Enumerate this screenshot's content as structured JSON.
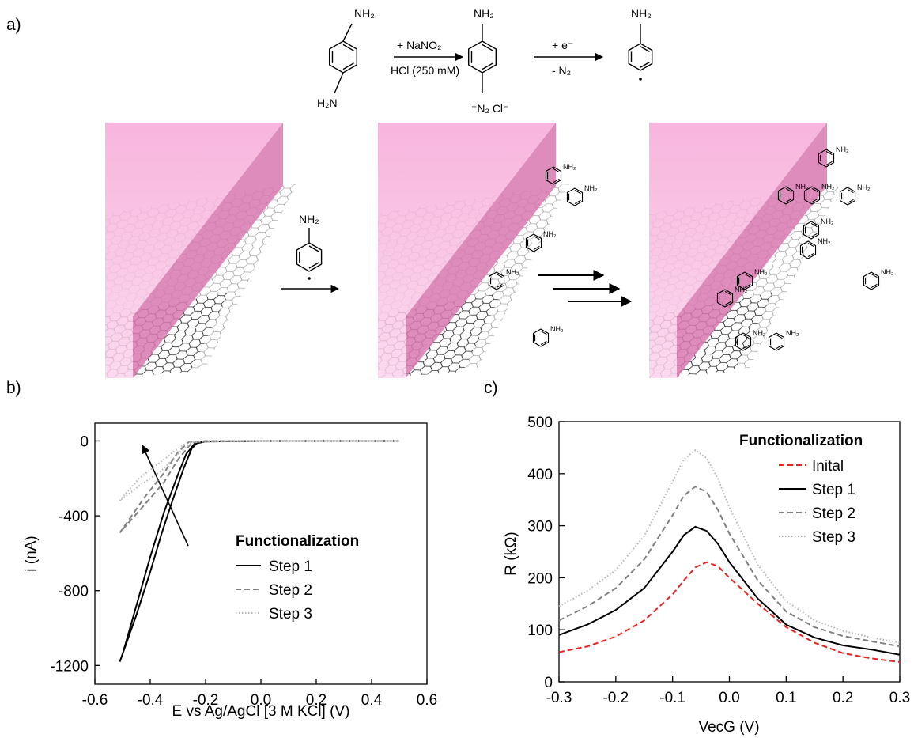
{
  "panel_labels": {
    "a": "a)",
    "b": "b)",
    "c": "c)"
  },
  "scheme": {
    "reactant_top": "NH₂",
    "reactant_bottom": "H₂N",
    "reagent_1": "+ NaNO₂",
    "condition_1": "HCl (250 mM)",
    "diazonium_top": "NH₂",
    "diazonium_bottom": "⁺N₂ Cl⁻",
    "reagent_2": "+ e⁻",
    "condition_2": "- N₂",
    "radical_top": "NH₂",
    "radical_surface": "NH₂",
    "surface_labels": [
      "NH₂",
      "NH₂",
      "NH₂",
      "NH₂",
      "NH₂",
      "NH₂",
      "NH₂",
      "NH₂",
      "NH₂",
      "NH₂",
      "NH₂",
      "NH₂",
      "NH₂",
      "NH₂",
      "NH₂",
      "NH₂"
    ]
  },
  "chart_data": [
    {
      "type": "line",
      "x_label": "E vs Ag/AgCl [3 M KCl] (V)",
      "y_label": "i (nA)",
      "xlim": [
        -0.6,
        0.6
      ],
      "ylim": [
        -1300,
        95
      ],
      "xticks": [
        -0.6,
        -0.4,
        -0.2,
        {
          "value": 0,
          "label": "0.0"
        },
        0.2,
        0.4,
        0.6
      ],
      "yticks": [
        0,
        -400,
        -800,
        -1200
      ],
      "legend_title": "Functionalization",
      "series": [
        {
          "name": "Step 1",
          "color": "#000000",
          "dash": "solid",
          "x": [
            0.5,
            0,
            -0.2,
            -0.23,
            -0.25,
            -0.28,
            -0.32,
            -0.36,
            -0.4,
            -0.45,
            -0.51,
            -0.5,
            -0.45,
            -0.4,
            -0.35,
            -0.3,
            -0.27,
            -0.24,
            -0.2,
            0,
            0.5
          ],
          "values": [
            0,
            0,
            -2,
            -10,
            -40,
            -150,
            -320,
            -500,
            -700,
            -930,
            -1180,
            -1140,
            -880,
            -620,
            -380,
            -180,
            -70,
            -15,
            -3,
            0,
            0
          ]
        },
        {
          "name": "Step 2",
          "color": "#808080",
          "dash": "dashed",
          "x": [
            0.5,
            -0.2,
            -0.25,
            -0.3,
            -0.35,
            -0.42,
            -0.51,
            -0.5,
            -0.42,
            -0.35,
            -0.3,
            -0.26,
            0,
            0.5
          ],
          "values": [
            0,
            0,
            -10,
            -100,
            -220,
            -340,
            -490,
            -470,
            -300,
            -170,
            -60,
            -5,
            0,
            0
          ]
        },
        {
          "name": "Step 3",
          "color": "#b4b4b4",
          "dash": "dotted",
          "x": [
            0.5,
            -0.2,
            -0.25,
            -0.3,
            -0.36,
            -0.44,
            -0.51,
            -0.5,
            -0.44,
            -0.36,
            -0.3,
            -0.26,
            0,
            0.5
          ],
          "values": [
            0,
            0,
            -10,
            -70,
            -160,
            -240,
            -320,
            -300,
            -200,
            -110,
            -40,
            -5,
            0,
            0
          ]
        }
      ]
    },
    {
      "type": "line",
      "x_label": "VecG (V)",
      "y_label": "R (kΩ)",
      "xlim": [
        -0.3,
        0.3
      ],
      "ylim": [
        0,
        500
      ],
      "xticks": [
        -0.3,
        -0.2,
        -0.1,
        {
          "value": 0,
          "label": "0.0"
        },
        0.1,
        0.2,
        0.3
      ],
      "yticks": [
        0,
        100,
        200,
        300,
        400,
        500
      ],
      "legend_title": "Functionalization",
      "series": [
        {
          "name": "Inital",
          "color": "#e8231f",
          "dash": "dashed",
          "x": [
            -0.3,
            -0.25,
            -0.2,
            -0.15,
            -0.1,
            -0.08,
            -0.06,
            -0.04,
            -0.02,
            0,
            0.05,
            0.1,
            0.15,
            0.2,
            0.25,
            0.3
          ],
          "values": [
            57,
            68,
            87,
            118,
            168,
            195,
            220,
            230,
            222,
            200,
            150,
            105,
            75,
            55,
            45,
            38
          ]
        },
        {
          "name": "Step 1",
          "color": "#000000",
          "dash": "solid",
          "x": [
            -0.3,
            -0.25,
            -0.2,
            -0.15,
            -0.1,
            -0.08,
            -0.06,
            -0.04,
            -0.02,
            0,
            0.05,
            0.1,
            0.15,
            0.2,
            0.25,
            0.3
          ],
          "values": [
            90,
            110,
            138,
            180,
            250,
            282,
            298,
            290,
            265,
            230,
            160,
            110,
            85,
            70,
            62,
            52
          ]
        },
        {
          "name": "Step 2",
          "color": "#808080",
          "dash": "dashed",
          "x": [
            -0.3,
            -0.25,
            -0.2,
            -0.15,
            -0.1,
            -0.08,
            -0.06,
            -0.04,
            -0.02,
            0,
            0.05,
            0.1,
            0.15,
            0.2,
            0.25,
            0.3
          ],
          "values": [
            118,
            145,
            180,
            235,
            320,
            358,
            375,
            365,
            330,
            285,
            195,
            135,
            105,
            88,
            78,
            68
          ]
        },
        {
          "name": "Step 3",
          "color": "#b4b4b4",
          "dash": "dotted",
          "x": [
            -0.3,
            -0.25,
            -0.2,
            -0.15,
            -0.1,
            -0.08,
            -0.06,
            -0.04,
            -0.02,
            0,
            0.05,
            0.1,
            0.15,
            0.2,
            0.25,
            0.3
          ],
          "values": [
            145,
            175,
            215,
            280,
            385,
            428,
            445,
            430,
            390,
            335,
            225,
            155,
            118,
            98,
            85,
            75
          ]
        }
      ]
    }
  ]
}
